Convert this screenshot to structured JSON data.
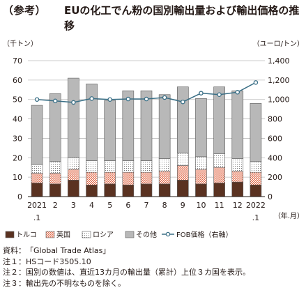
{
  "header": {
    "tag": "（参考）",
    "title": "EUの化工でん粉の国別輸出量および輸出価格の推移"
  },
  "chart_data": {
    "type": "bar",
    "stacked": true,
    "left_axis_unit": "（千トン）",
    "right_axis_unit": "（ユーロ/トン）",
    "x_axis_unit": "（年.月）",
    "ylim": [
      0,
      70
    ],
    "y2lim": [
      0,
      1400
    ],
    "yticks": [
      "0",
      "10",
      "20",
      "30",
      "40",
      "50",
      "60",
      "70"
    ],
    "y2ticks": [
      "0",
      "200",
      "400",
      "600",
      "800",
      "1,000",
      "1,200",
      "1,400"
    ],
    "categories": [
      [
        "2021",
        ".1"
      ],
      [
        "2",
        ""
      ],
      [
        "3",
        ""
      ],
      [
        "4",
        ""
      ],
      [
        "5",
        ""
      ],
      [
        "6",
        ""
      ],
      [
        "7",
        ""
      ],
      [
        "8",
        ""
      ],
      [
        "9",
        ""
      ],
      [
        "10",
        ""
      ],
      [
        "11",
        ""
      ],
      [
        "12",
        ""
      ],
      [
        "2022",
        ".1"
      ]
    ],
    "series": [
      {
        "name": "トルコ",
        "color": "#5a3221",
        "values": [
          7,
          6.5,
          8.5,
          6,
          6.5,
          6,
          6.5,
          6.5,
          8.5,
          6.5,
          7,
          7.5,
          6
        ]
      },
      {
        "name": "英国",
        "color": "#e06a4a",
        "values": [
          5,
          5.5,
          5.5,
          6.5,
          6,
          6.5,
          6,
          6.5,
          7.5,
          7.5,
          8,
          5.5,
          6.5
        ]
      },
      {
        "name": "ロシア",
        "color": "#ffffff",
        "values": [
          4.5,
          6,
          6,
          6,
          6,
          6,
          6,
          6.5,
          6.5,
          6.5,
          7,
          6.5,
          5.5
        ]
      },
      {
        "name": "その他",
        "color": "#b8b8b8",
        "values": [
          30.5,
          35,
          41,
          39.5,
          31,
          36,
          36,
          33,
          34,
          30,
          34.5,
          35,
          30
        ]
      }
    ],
    "line_series": {
      "name": "FOB価格（右軸）",
      "axis": "right",
      "color": "#3a6f86",
      "values": [
        1000,
        985,
        970,
        1010,
        1000,
        1005,
        1005,
        1020,
        975,
        1065,
        1050,
        1075,
        1175
      ]
    }
  },
  "notes": [
    {
      "label": "資料：",
      "text": "「Global Trade Atlas」"
    },
    {
      "label": "注１：",
      "text": "HSコード3505.10"
    },
    {
      "label": "注２：",
      "text": "国別の数値は、直近13カ月の輸出量（累計）上位３カ国を表示。"
    },
    {
      "label": "注３：",
      "text": "輸出先の不明なものを除く。"
    }
  ]
}
